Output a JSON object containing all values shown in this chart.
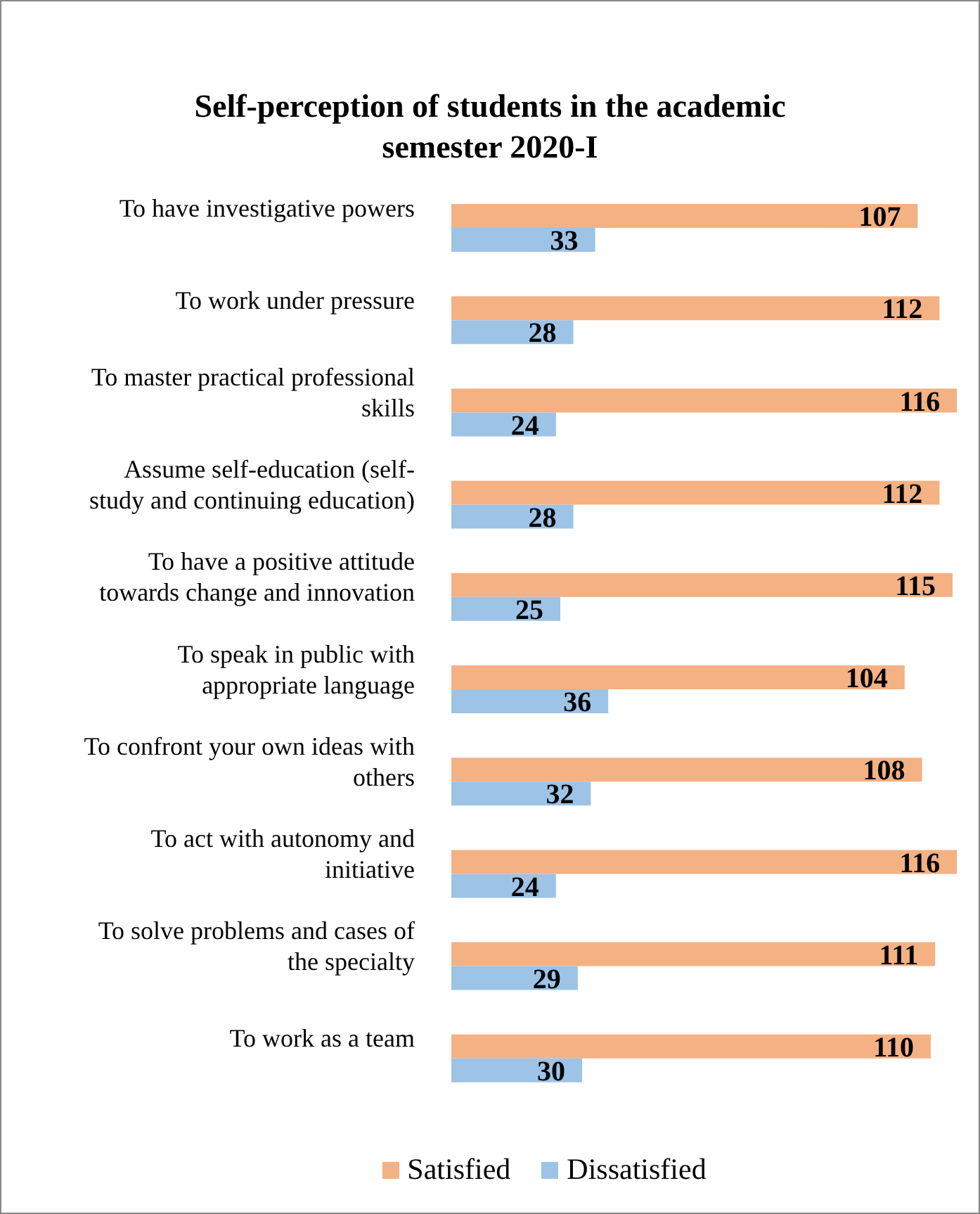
{
  "chart_data": {
    "type": "bar",
    "orientation": "horizontal",
    "title": "Self-perception of students in the academic semester 2020-I",
    "categories": [
      "To have investigative powers",
      "To work under pressure",
      "To master practical professional skills",
      "Assume self-education (self-study and continuing education)",
      "To have a positive attitude towards change and innovation",
      "To speak in public with appropriate language",
      "To confront your own ideas with others",
      "To act with autonomy and initiative",
      "To solve problems and cases of the specialty",
      "To work as a team"
    ],
    "series": [
      {
        "name": "Satisfied",
        "color": "#f4b183",
        "values": [
          107,
          112,
          116,
          112,
          115,
          104,
          108,
          116,
          111,
          110
        ]
      },
      {
        "name": "Dissatisfied",
        "color": "#9dc3e6",
        "values": [
          33,
          28,
          24,
          28,
          25,
          36,
          32,
          24,
          29,
          30
        ]
      }
    ],
    "legend": "bottom",
    "data_labels": true,
    "tick_labels": "y"
  }
}
